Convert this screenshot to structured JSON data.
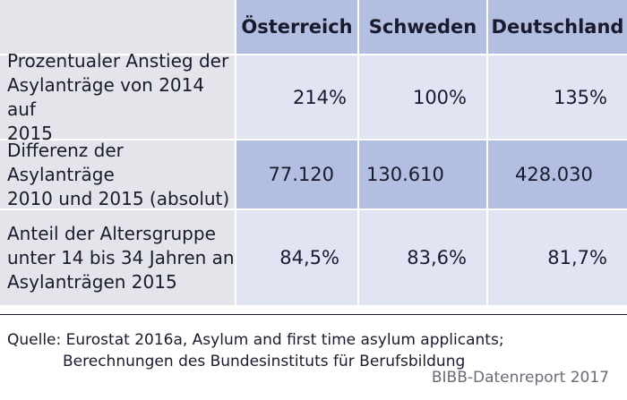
{
  "table": {
    "headers": [
      "",
      "Österreich",
      "Schweden",
      "Deutschland"
    ],
    "rows": [
      {
        "label": [
          "Prozentualer Anstieg der",
          "Asylanträge von 2014 auf",
          "2015"
        ],
        "values": [
          "214%",
          "100%",
          "135%"
        ]
      },
      {
        "label": [
          "Differenz der Asylanträge",
          "2010 und 2015 (absolut)"
        ],
        "values": [
          "77.120",
          "130.610",
          "428.030"
        ]
      },
      {
        "label": [
          "Anteil der Altersgruppe",
          "unter 14 bis 34 Jahren an",
          "Asylanträgen 2015"
        ],
        "values": [
          "84,5%",
          "83,6%",
          "81,7%"
        ]
      }
    ]
  },
  "footer": {
    "source_line1": "Quelle: Eurostat 2016a, Asylum and first time asylum applicants;",
    "source_line2": "Berechnungen des Bundesinstituts für Berufsbildung",
    "brand": "BIBB-Datenreport 2017"
  },
  "colors": {
    "header_blue": "#b3bfe0",
    "row_light": "#e0e4f3",
    "label_gray": "#e4e5ea"
  }
}
